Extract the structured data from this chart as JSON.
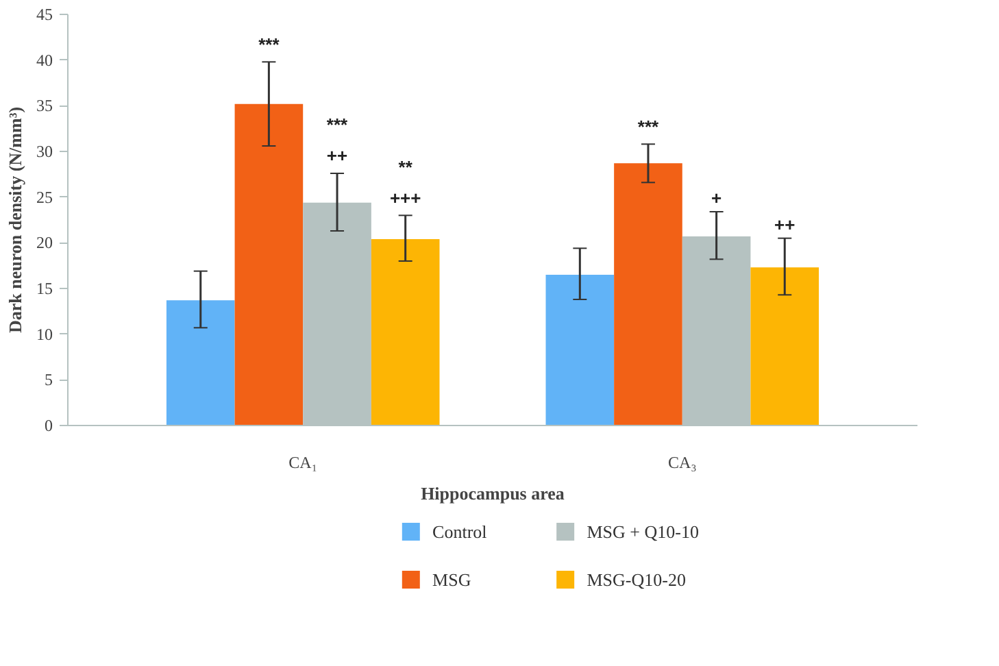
{
  "chart_data": {
    "type": "bar",
    "xlabel": "Hippocampus area",
    "ylabel": "Dark neuron density (N/mm³)",
    "categories": [
      "CA₁",
      "CA₃"
    ],
    "series": [
      {
        "name": "Control",
        "color": "#61b3f7",
        "values": [
          13.7,
          16.5
        ],
        "errors": [
          [
            10.7,
            16.9
          ],
          [
            13.8,
            19.4
          ]
        ],
        "value_labels": [
          null,
          null
        ]
      },
      {
        "name": "MSG",
        "color": "#f26116",
        "values": [
          35.2,
          28.7
        ],
        "errors": [
          [
            30.6,
            39.8
          ],
          [
            26.6,
            30.8
          ]
        ],
        "value_labels": [
          "***",
          "***"
        ]
      },
      {
        "name": "MSG + Q10-10",
        "color": "#b5c2c1",
        "values": [
          24.4,
          20.7
        ],
        "errors": [
          [
            21.3,
            27.6
          ],
          [
            18.2,
            23.4
          ]
        ],
        "value_labels": [
          "***\n++",
          "+"
        ]
      },
      {
        "name": "MSG-Q10-20",
        "color": "#fdb504",
        "values": [
          20.4,
          17.3
        ],
        "errors": [
          [
            18.0,
            23.0
          ],
          [
            14.3,
            20.5
          ]
        ],
        "value_labels": [
          "**\n+++",
          "++"
        ]
      }
    ],
    "ylim": [
      0,
      45
    ],
    "yticks": [
      0,
      5,
      10,
      15,
      20,
      25,
      30,
      35,
      40,
      45
    ],
    "grid": false,
    "legend": "bottom"
  }
}
